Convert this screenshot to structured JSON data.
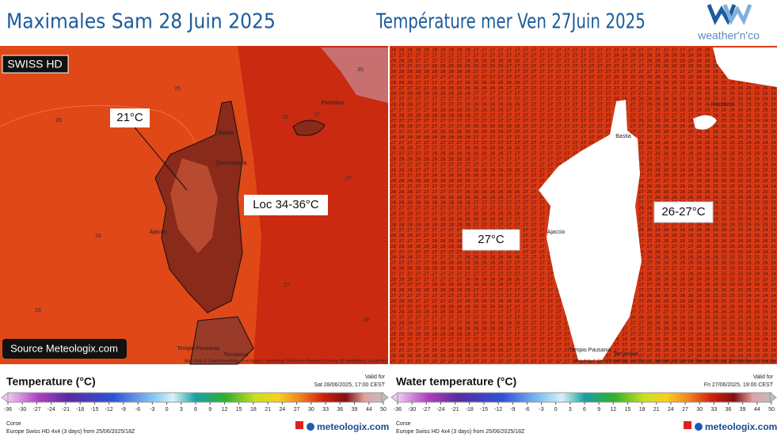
{
  "header": {
    "left_title": "Maximales Sam 28 Juin 2025",
    "right_title": "Température mer Ven 27Juin 2025",
    "logo": "weather'n'co"
  },
  "left_map": {
    "model_badge": "SWISS HD",
    "source": "Source Meteologix.com",
    "callouts": [
      "21°C",
      "Loc 34-36°C"
    ],
    "places": [
      "Bastia",
      "Ajaccio",
      "Piombino",
      "Quercianella",
      "Tempio Pausania",
      "Terranova"
    ],
    "contour_labels": [
      "25",
      "26",
      "26",
      "26",
      "27",
      "27",
      "27",
      "29",
      "35",
      "29"
    ],
    "attribution": "Map data © OpenStreetMap contributors, rendering GIScience Research Group @ Heidelberg University"
  },
  "right_map": {
    "callouts": [
      "27°C",
      "26-27°C"
    ],
    "places": [
      "Bastia",
      "Ajaccio",
      "Piombino",
      "Tempio Pausania",
      "Terranova"
    ],
    "grid_rows": [
      "28 28 28 28 28 28 28 28 28 28 27 27 27 27 27 27 27 27 27 27 27 27 27 27 27 27 27 27 27 27 27 27 27 27 27 27 27 26 26 26 26 26 25 25 25 25 25",
      "27 27 27 27 27 27 27 27 27 27 27 27 27 27 27 27 27 27 27 27 27 27 27 27 27 27 27 26 26 26 26 26 26 26 26 26 26 26 26 25 25 25 25 24 24 24 24",
      "28 28 28 27 27 27 27 27 27 26 26 26 26 26 26 26 27 27 27 27 27 27 27 27 27 27 27 27 27 27 27 26 26 26 26 26 26 26 26 26 25 25 25 25 25 25 25",
      "27 27 27 27 27 26 26 26 26 26 26 26 26 26 27 27 27 27 27 27 27 27 27 27 27 27 27 27 27 27 27 27 26 26 26 26 26 26 26 26 26 26 26 26 26 26 26"
    ],
    "attribution": "Map data © OpenStreetMap contributors, rendering GIScience Research Group @ Heidelberg University"
  },
  "legends": [
    {
      "title": "Temperature (°C)",
      "valid_label": "Valid for",
      "valid_time": "Sat 28/06/2025, 17:00 CEST",
      "region": "Corse",
      "model": "Europe Swiss HD 4x4 (3 days) from 25/06/2025/18Z",
      "brand": "meteologix.com",
      "ticks": [
        -36,
        -30,
        -27,
        -24,
        -21,
        -18,
        -15,
        -12,
        -9,
        -6,
        -3,
        0,
        3,
        6,
        9,
        12,
        15,
        18,
        21,
        24,
        27,
        30,
        33,
        36,
        39,
        44,
        50
      ]
    },
    {
      "title": "Water temperature (°C)",
      "valid_label": "Valid for",
      "valid_time": "Fri 27/06/2025, 19:00 CEST",
      "region": "Corse",
      "model": "Europe Swiss HD 4x4 (3 days) from 25/06/2025/18Z",
      "brand": "meteologix.com",
      "ticks": [
        -36,
        -30,
        -27,
        -24,
        -21,
        -18,
        -15,
        -12,
        -9,
        -6,
        -3,
        0,
        3,
        6,
        9,
        12,
        15,
        18,
        21,
        24,
        27,
        30,
        33,
        36,
        39,
        44,
        50
      ]
    }
  ]
}
